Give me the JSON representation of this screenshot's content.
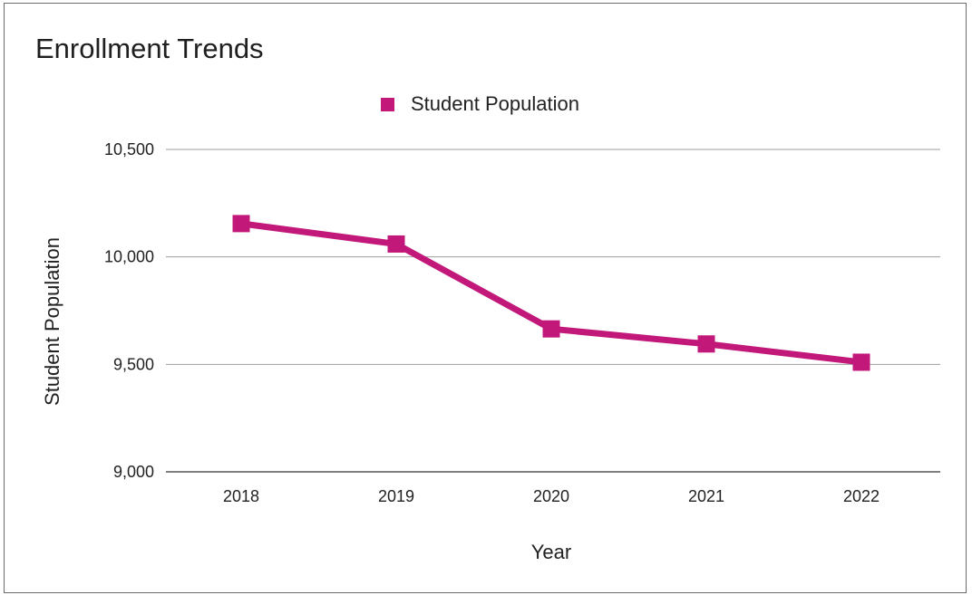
{
  "chart_data": {
    "type": "line",
    "title": "Enrollment Trends",
    "xlabel": "Year",
    "ylabel": "Student Population",
    "categories": [
      "2018",
      "2019",
      "2020",
      "2021",
      "2022"
    ],
    "series": [
      {
        "name": "Student Population",
        "values": [
          10155,
          10060,
          9665,
          9595,
          9510
        ],
        "color": "#c2187a"
      }
    ],
    "ylim": [
      9000,
      10500
    ],
    "yticks": [
      9000,
      9500,
      10000,
      10500
    ],
    "ytick_labels": [
      "9,000",
      "9,500",
      "10,000",
      "10,500"
    ],
    "grid": true,
    "legend_position": "top-center",
    "marker": "square"
  }
}
